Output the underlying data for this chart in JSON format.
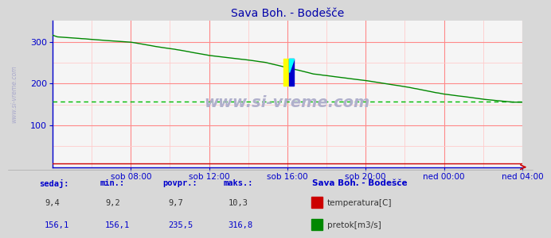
{
  "title": "Sava Boh. - Bodešče",
  "bg_color": "#d8d8d8",
  "plot_bg_color": "#f5f5f5",
  "title_color": "#0000aa",
  "xlim_min": 0,
  "xlim_max": 288,
  "ylim_min": 0,
  "ylim_max": 350,
  "yticks": [
    100,
    200,
    300
  ],
  "xtick_labels": [
    "sob 08:00",
    "sob 12:00",
    "sob 16:00",
    "sob 20:00",
    "ned 00:00",
    "ned 04:00"
  ],
  "xtick_positions": [
    48,
    96,
    144,
    192,
    240,
    288
  ],
  "avg_line_value": 156.1,
  "watermark": "www.si-vreme.com",
  "watermark_color": "#b0b0cc",
  "legend_title": "Sava Boh. - Bodešče",
  "legend_temp_label": "temperatura[C]",
  "legend_flow_label": "pretok[m3/s]",
  "stats_headers": [
    "sedaj:",
    "min.:",
    "povpr.:",
    "maks.:"
  ],
  "stats_temp": [
    "9,4",
    "9,2",
    "9,7",
    "10,3"
  ],
  "stats_flow": [
    "156,1",
    "156,1",
    "235,5",
    "316,8"
  ],
  "side_label": "www.si-vreme.com",
  "side_label_color": "#aaaacc",
  "flow_color": "#008800",
  "temp_color": "#cc0000",
  "avg_color": "#00bb00",
  "grid_major_color": "#ff8888",
  "grid_minor_color": "#ffcccc",
  "axis_color": "#0000cc",
  "tick_label_color": "#0000aa",
  "stats_header_color": "#0000cc",
  "stats_val_color": "#333333",
  "stats_flow_color": "#0000cc"
}
